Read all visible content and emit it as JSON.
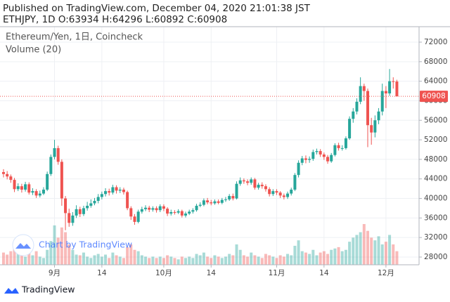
{
  "chart_data": {
    "type": "candlestick",
    "published": "Published on TradingView.com, December 04, 2020 21:01:38 JST",
    "ohlc_header": "ETHJPY, 1D O:63934 H:64296 L:60892 C:60908",
    "title": "Ethereum/Yen, 1日, Coincheck",
    "volume_label": "Volume (20)",
    "watermark": "Chart by TradingView",
    "footer": "TradingView",
    "up_color": "#26a69a",
    "down_color": "#ef5350",
    "grid": true,
    "x": [
      "08-18",
      "08-19",
      "08-20",
      "08-21",
      "08-22",
      "08-23",
      "08-24",
      "08-25",
      "08-26",
      "08-27",
      "08-28",
      "08-29",
      "08-30",
      "08-31",
      "09-01",
      "09-02",
      "09-03",
      "09-04",
      "09-05",
      "09-06",
      "09-07",
      "09-08",
      "09-09",
      "09-10",
      "09-11",
      "09-12",
      "09-13",
      "09-14",
      "09-15",
      "09-16",
      "09-17",
      "09-18",
      "09-19",
      "09-20",
      "09-21",
      "09-22",
      "09-23",
      "09-24",
      "09-25",
      "09-26",
      "09-27",
      "09-28",
      "09-29",
      "09-30",
      "10-01",
      "10-02",
      "10-03",
      "10-04",
      "10-05",
      "10-06",
      "10-07",
      "10-08",
      "10-09",
      "10-10",
      "10-11",
      "10-12",
      "10-13",
      "10-14",
      "10-15",
      "10-16",
      "10-17",
      "10-18",
      "10-19",
      "10-20",
      "10-21",
      "10-22",
      "10-23",
      "10-24",
      "10-25",
      "10-26",
      "10-27",
      "10-28",
      "10-29",
      "10-30",
      "10-31",
      "11-01",
      "11-02",
      "11-03",
      "11-04",
      "11-05",
      "11-06",
      "11-07",
      "11-08",
      "11-09",
      "11-10",
      "11-11",
      "11-12",
      "11-13",
      "11-14",
      "11-15",
      "11-16",
      "11-17",
      "11-18",
      "11-19",
      "11-20",
      "11-21",
      "11-22",
      "11-23",
      "11-24",
      "11-25",
      "11-26",
      "11-27",
      "11-28",
      "11-29",
      "11-30",
      "12-01",
      "12-02",
      "12-03",
      "12-04"
    ],
    "open": [
      45400,
      45000,
      44500,
      43800,
      41900,
      42500,
      41800,
      42900,
      41200,
      41500,
      40600,
      41000,
      41800,
      45000,
      48500,
      50300,
      47500,
      40000,
      37000,
      35000,
      36500,
      37800,
      36800,
      38000,
      38500,
      39000,
      39500,
      40300,
      40900,
      41500,
      41200,
      42300,
      41600,
      41800,
      41300,
      38000,
      36300,
      35200,
      37300,
      37800,
      38100,
      37700,
      38000,
      37600,
      38400,
      37900,
      36900,
      37200,
      37100,
      37400,
      36500,
      36900,
      37300,
      37600,
      38500,
      38700,
      39600,
      39200,
      39000,
      39400,
      39100,
      39700,
      39800,
      40500,
      40000,
      43000,
      43700,
      43500,
      43200,
      43900,
      42200,
      42800,
      42500,
      41900,
      40900,
      41500,
      41200,
      40600,
      40300,
      41000,
      41800,
      44800,
      47300,
      48200,
      47900,
      48100,
      49500,
      49700,
      49000,
      48500,
      47600,
      48900,
      50900,
      50300,
      50300,
      52300,
      56300,
      57800,
      59800,
      63000,
      62000,
      55000,
      53500,
      56000,
      57800,
      62000,
      61500,
      64000,
      63934
    ],
    "high": [
      46000,
      45600,
      44900,
      44200,
      43100,
      43000,
      43400,
      43300,
      42100,
      41900,
      41600,
      42300,
      45500,
      49000,
      52000,
      50800,
      48000,
      40500,
      37900,
      37200,
      38600,
      38300,
      38500,
      39300,
      39800,
      40100,
      40900,
      41400,
      42100,
      42000,
      42800,
      42700,
      42300,
      42200,
      41600,
      38400,
      36800,
      37700,
      38300,
      38600,
      38500,
      38400,
      38400,
      38800,
      38800,
      38200,
      37700,
      37600,
      37800,
      37700,
      37300,
      37700,
      38000,
      38900,
      39200,
      40000,
      40100,
      39700,
      39800,
      39800,
      40100,
      40300,
      40900,
      41000,
      43500,
      44300,
      44100,
      43900,
      44300,
      44200,
      43200,
      43300,
      42900,
      42300,
      41900,
      41900,
      41500,
      41000,
      41400,
      42200,
      45200,
      47800,
      48700,
      48800,
      48600,
      50000,
      50200,
      50100,
      49400,
      48900,
      49300,
      51300,
      51400,
      50900,
      52700,
      56800,
      58500,
      60500,
      64800,
      63500,
      62500,
      56500,
      57000,
      58500,
      63500,
      63000,
      66500,
      64800,
      64296
    ],
    "low": [
      44300,
      43900,
      43200,
      41300,
      41500,
      41200,
      41400,
      40800,
      40700,
      40100,
      40200,
      40700,
      41500,
      44600,
      48000,
      46900,
      38500,
      33500,
      34200,
      34400,
      36000,
      36200,
      36400,
      37500,
      38100,
      38600,
      39000,
      39800,
      40400,
      40600,
      40800,
      41000,
      41100,
      40800,
      37600,
      35600,
      34600,
      34900,
      36900,
      37400,
      37200,
      37300,
      37100,
      37200,
      37400,
      36400,
      36500,
      36700,
      36800,
      36100,
      36100,
      36600,
      36900,
      37300,
      38200,
      38400,
      38800,
      38600,
      38700,
      38800,
      38800,
      39300,
      39500,
      39600,
      39800,
      42600,
      43000,
      42700,
      42800,
      41800,
      41800,
      42000,
      41400,
      40400,
      40500,
      40700,
      40100,
      39800,
      39900,
      40600,
      41500,
      44300,
      46800,
      47200,
      47300,
      47700,
      49000,
      48500,
      47900,
      47100,
      47300,
      48600,
      49800,
      49800,
      50000,
      52000,
      55500,
      57200,
      59300,
      60000,
      50500,
      51000,
      52500,
      55200,
      57000,
      58500,
      61000,
      62500,
      60892
    ],
    "close": [
      45000,
      44500,
      43800,
      41900,
      42500,
      41800,
      42900,
      41200,
      41500,
      40600,
      41000,
      41800,
      45000,
      48500,
      50300,
      47500,
      40000,
      37000,
      35000,
      36500,
      37800,
      36800,
      38000,
      38500,
      39000,
      39500,
      40300,
      40900,
      41500,
      41200,
      42300,
      41600,
      41800,
      41300,
      38000,
      36300,
      35200,
      37300,
      37800,
      38100,
      37700,
      38000,
      37600,
      38400,
      37900,
      36900,
      37200,
      37100,
      37400,
      36500,
      36900,
      37300,
      37600,
      38500,
      38700,
      39600,
      39200,
      39000,
      39400,
      39100,
      39700,
      39800,
      40500,
      40000,
      43000,
      43700,
      43500,
      43200,
      43900,
      42200,
      42800,
      42500,
      41900,
      40900,
      41500,
      41200,
      40600,
      40300,
      41000,
      41800,
      44800,
      47300,
      48200,
      47900,
      48100,
      49500,
      49700,
      49000,
      48500,
      47600,
      48900,
      50900,
      50300,
      50300,
      52300,
      56300,
      57800,
      59800,
      63000,
      62000,
      55000,
      53500,
      56000,
      57800,
      62000,
      61500,
      64000,
      63934,
      60908
    ],
    "volume": [
      18,
      15,
      20,
      25,
      16,
      14,
      12,
      18,
      14,
      20,
      12,
      10,
      22,
      35,
      58,
      40,
      55,
      48,
      30,
      22,
      15,
      14,
      18,
      12,
      10,
      14,
      16,
      12,
      15,
      10,
      18,
      14,
      12,
      10,
      26,
      30,
      22,
      20,
      14,
      12,
      10,
      12,
      10,
      12,
      10,
      14,
      12,
      10,
      8,
      12,
      10,
      12,
      10,
      16,
      14,
      18,
      12,
      10,
      14,
      12,
      10,
      12,
      16,
      14,
      30,
      22,
      14,
      12,
      18,
      14,
      12,
      10,
      16,
      14,
      12,
      10,
      14,
      12,
      16,
      14,
      28,
      36,
      20,
      18,
      16,
      22,
      14,
      18,
      20,
      16,
      22,
      24,
      26,
      20,
      22,
      34,
      40,
      44,
      48,
      60,
      50,
      40,
      36,
      42,
      30,
      34,
      44,
      30,
      20
    ],
    "ylim": [
      28000,
      72000
    ],
    "yticks": [
      28000,
      32000,
      36000,
      40000,
      44000,
      48000,
      52000,
      56000,
      60000,
      64000,
      68000,
      72000
    ],
    "xticks": [
      {
        "value": "09-01",
        "label": "9月"
      },
      {
        "value": "09-14",
        "label": "14"
      },
      {
        "value": "10-01",
        "label": "10月"
      },
      {
        "value": "10-14",
        "label": "14"
      },
      {
        "value": "11-01",
        "label": "11月"
      },
      {
        "value": "11-14",
        "label": "14"
      },
      {
        "value": "12-01",
        "label": "12月"
      }
    ]
  }
}
